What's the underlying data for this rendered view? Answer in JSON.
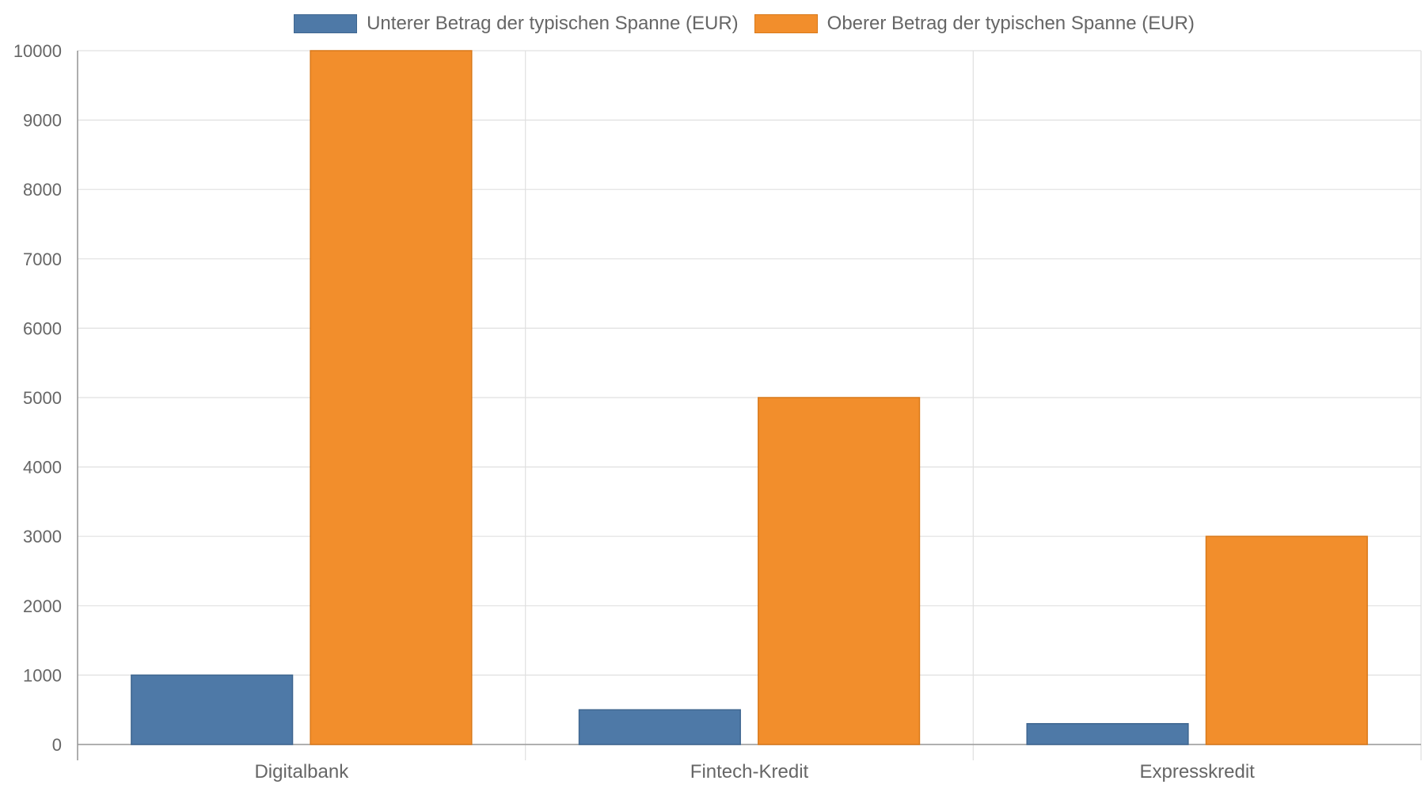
{
  "chart_data": {
    "type": "bar",
    "categories": [
      "Digitalbank",
      "Fintech-Kredit",
      "Expresskredit"
    ],
    "series": [
      {
        "name": "Unterer Betrag der typischen Spanne (EUR)",
        "values": [
          1000,
          500,
          300
        ],
        "color": "#4e79a7",
        "border": "#3f6690"
      },
      {
        "name": "Oberer Betrag der typischen Spanne (EUR)",
        "values": [
          10000,
          5000,
          3000
        ],
        "color": "#f28e2c",
        "border": "#d9791a"
      }
    ],
    "ylim": [
      0,
      10000
    ],
    "yticks": [
      "0",
      "1000",
      "2000",
      "3000",
      "4000",
      "5000",
      "6000",
      "7000",
      "8000",
      "9000",
      "10000"
    ],
    "grid": true,
    "legend_position": "top"
  }
}
